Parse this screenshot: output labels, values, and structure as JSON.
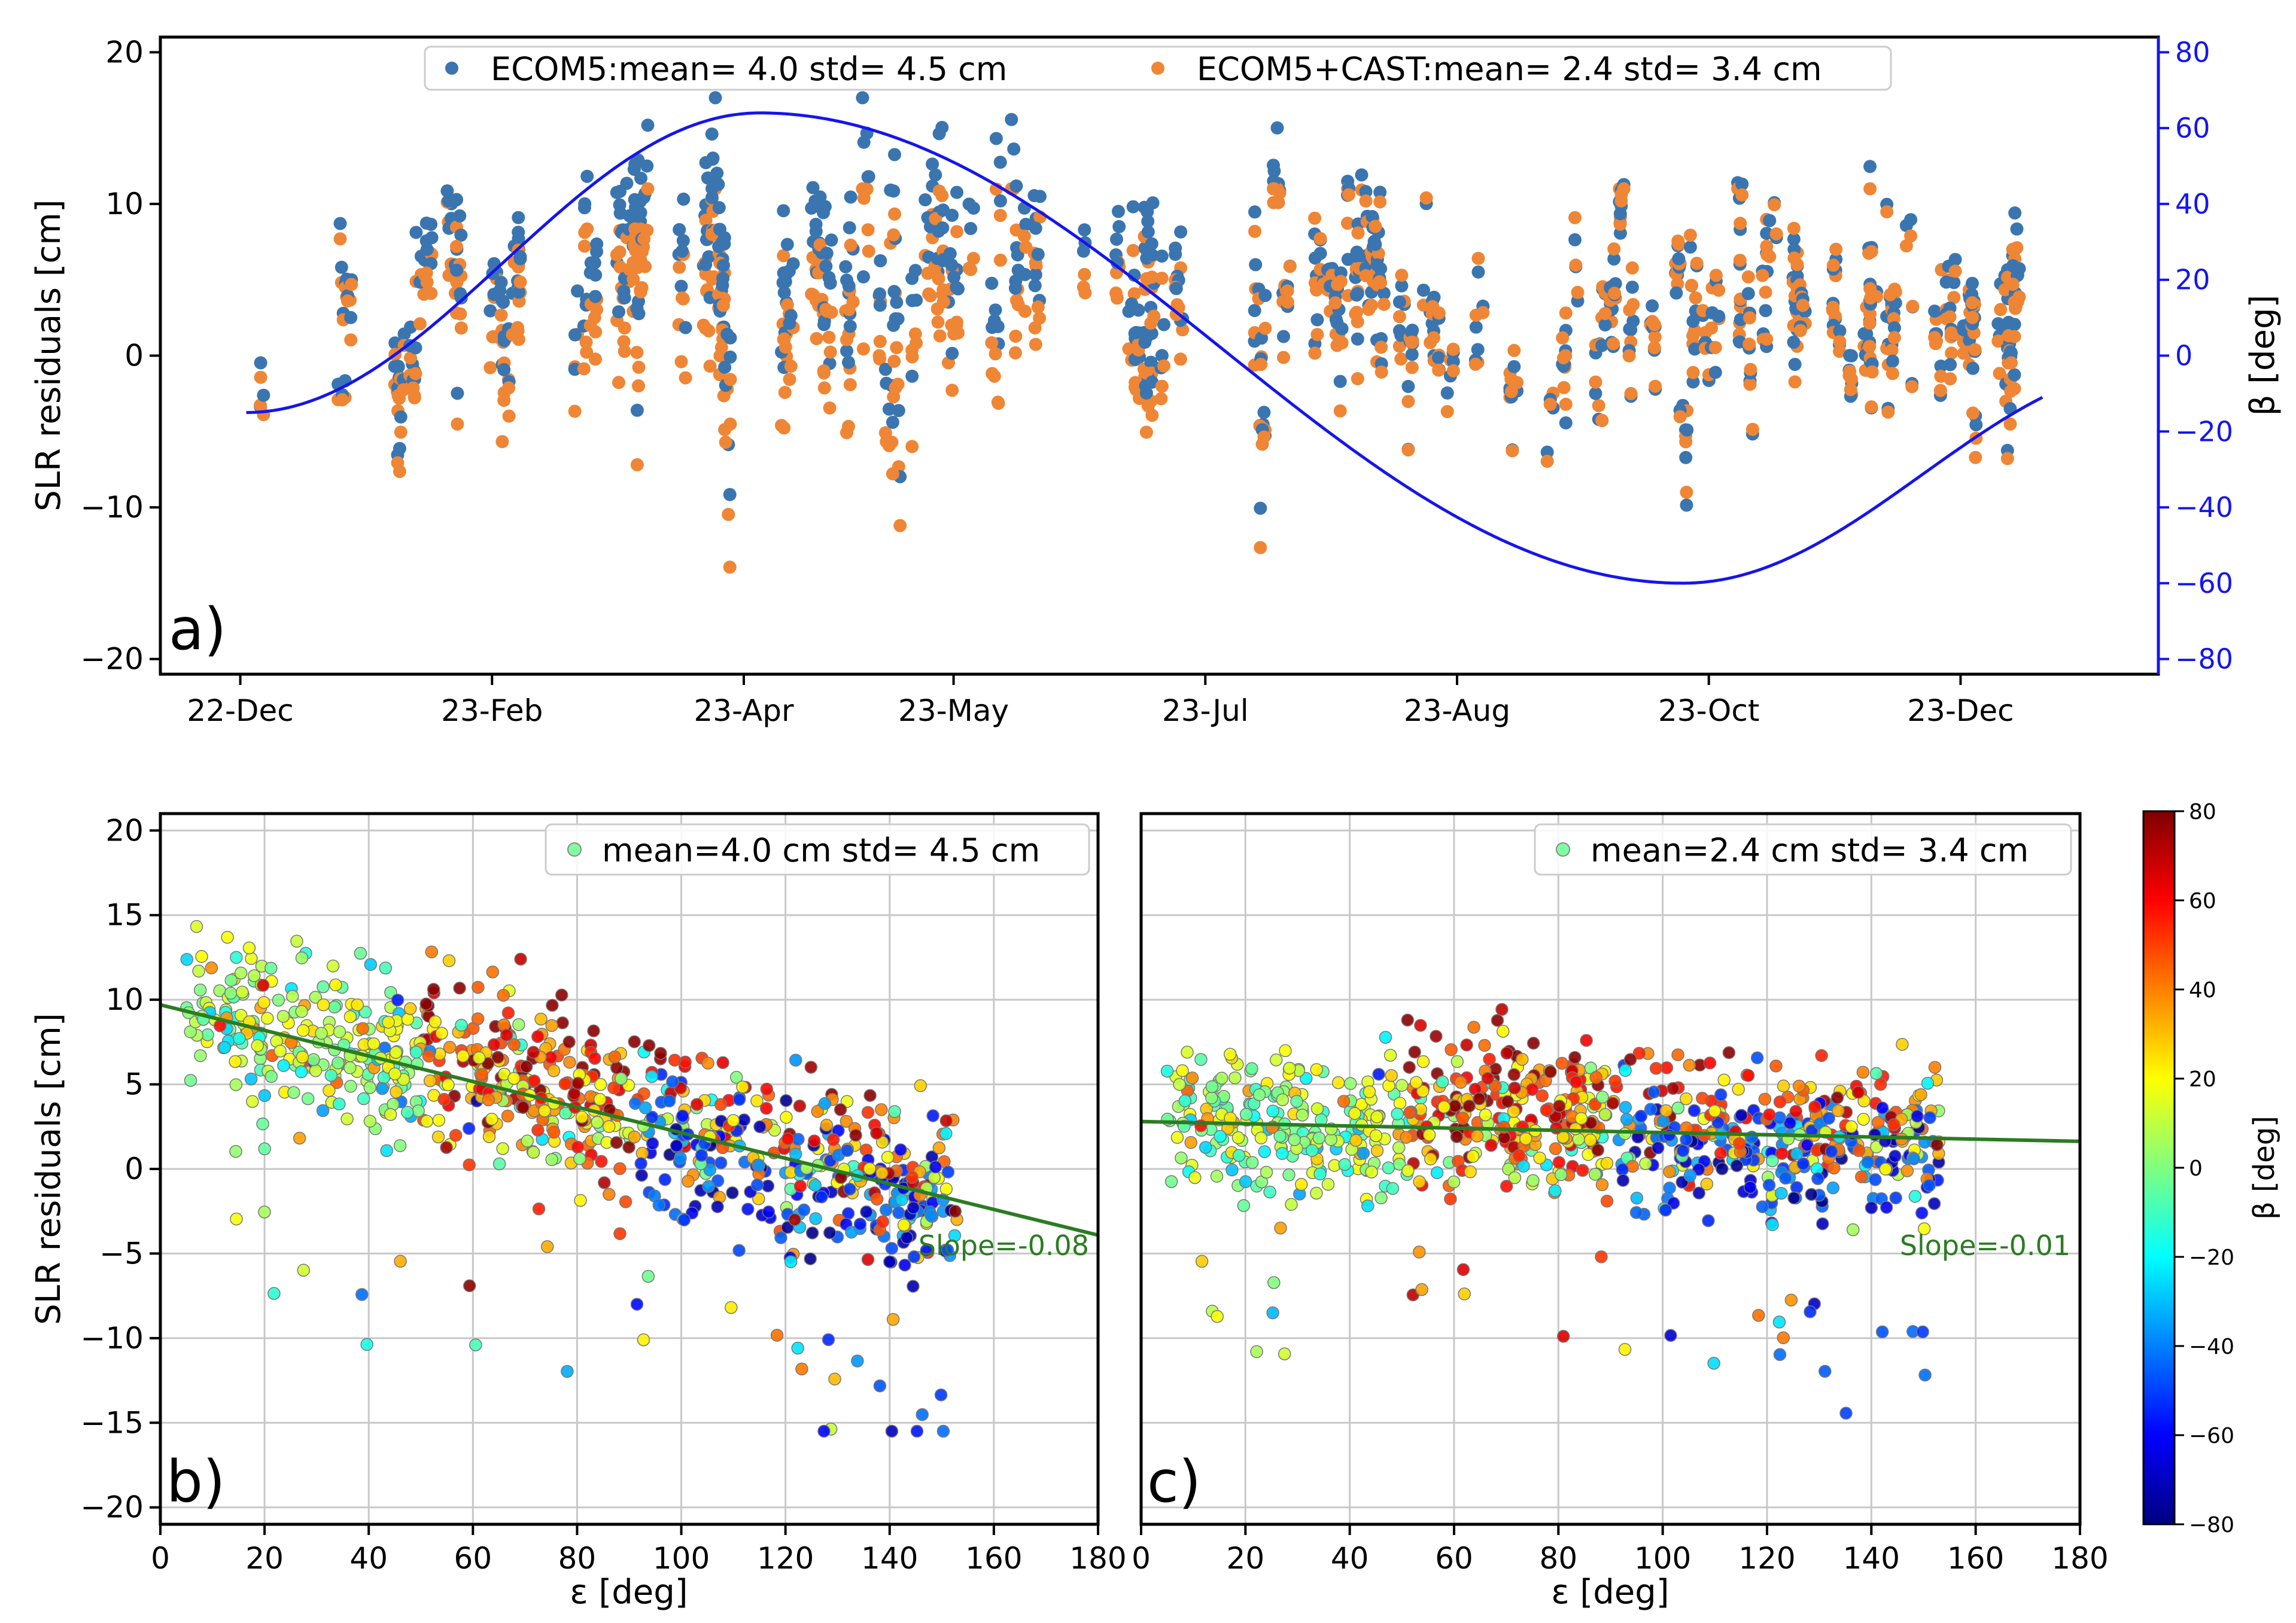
{
  "colors": {
    "ecom5": "#3a75b0",
    "ecom5_cast": "#ee8636",
    "beta_line": "#1515ee",
    "fit_line": "#2b7c22",
    "beta_axis": "#1515ee"
  },
  "chart_data": [
    {
      "id": "a",
      "type": "scatter",
      "panel_label": "a)",
      "ylabel": "SLR residuals [cm]",
      "y2label": "β [deg]",
      "ylim": [
        -21,
        21
      ],
      "y2lim": [
        -84,
        84
      ],
      "yticks": [
        -20,
        -10,
        0,
        10,
        20
      ],
      "y2ticks": [
        -80,
        -60,
        -40,
        -20,
        0,
        20,
        40,
        60,
        80
      ],
      "xticks": [
        "22-Dec",
        "23-Feb",
        "23-Apr",
        "23-May",
        "23-Jul",
        "23-Aug",
        "23-Oct",
        "23-Dec"
      ],
      "grid": false,
      "legend_position": "top-center",
      "series": [
        {
          "name": "ECOM5:mean= 4.0 std= 4.5 cm",
          "color_key": "ecom5",
          "mean": 4.0,
          "std": 4.5
        },
        {
          "name": "ECOM5+CAST:mean= 2.4 std= 3.4 cm",
          "color_key": "ecom5_cast",
          "mean": 2.4,
          "std": 3.4
        }
      ],
      "beta_curve": {
        "start": -15,
        "max": 64,
        "min": -60,
        "end": -11
      }
    },
    {
      "id": "b",
      "type": "scatter",
      "panel_label": "b)",
      "ylabel": "SLR residuals [cm]",
      "xlabel": "ε [deg]",
      "xlim": [
        0,
        180
      ],
      "ylim": [
        -21,
        21
      ],
      "xticks": [
        0,
        20,
        40,
        60,
        80,
        100,
        120,
        140,
        160,
        180
      ],
      "yticks": [
        -20,
        -15,
        -10,
        -5,
        0,
        5,
        10,
        15,
        20
      ],
      "grid": true,
      "legend": "mean=4.0 cm std= 4.5 cm",
      "legend_position": "top-right",
      "fit": {
        "label": "Slope=-0.08",
        "intercept": 9.7,
        "slope": -0.0756
      },
      "mean": 4.0,
      "std": 4.5
    },
    {
      "id": "c",
      "type": "scatter",
      "panel_label": "c)",
      "xlabel": "ε [deg]",
      "xlim": [
        0,
        180
      ],
      "ylim": [
        -21,
        21
      ],
      "xticks": [
        0,
        20,
        40,
        60,
        80,
        100,
        120,
        140,
        160,
        180
      ],
      "grid": true,
      "legend": "mean=2.4 cm std= 3.4 cm",
      "legend_position": "top-right",
      "fit": {
        "label": "Slope=-0.01",
        "intercept": 2.8,
        "slope": -0.0065
      },
      "mean": 2.4,
      "std": 3.4
    }
  ],
  "colorbar": {
    "label": "β [deg]",
    "range": [
      -80,
      80
    ],
    "ticks": [
      80,
      60,
      40,
      20,
      0,
      -20,
      -40,
      -60,
      -80
    ],
    "colormap": "jet"
  }
}
